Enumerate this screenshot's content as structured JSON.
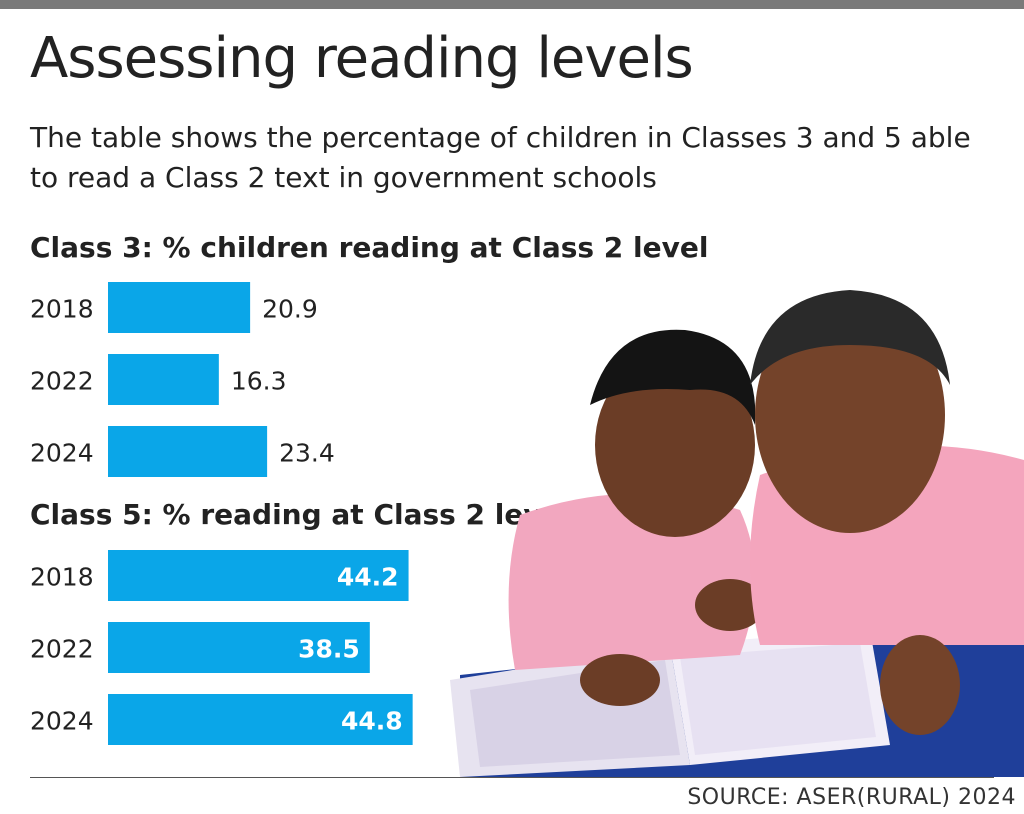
{
  "header": {
    "title": "Assessing reading levels",
    "subtitle": "The table shows the percentage of children in Classes 3 and 5 able to read a Class 2 text in government schools"
  },
  "footer": {
    "source": "SOURCE: ASER(RURAL) 2024"
  },
  "colors": {
    "bar": "#0aa6e8",
    "topbar": "#7a7a7a",
    "text": "#222222"
  },
  "photo": {
    "icon": "children-reading-photo"
  },
  "chart_data": [
    {
      "type": "bar",
      "orientation": "horizontal",
      "title": "Class 3: % children reading at Class 2 level",
      "categories": [
        "2018",
        "2022",
        "2024"
      ],
      "values": [
        20.9,
        16.3,
        23.4
      ],
      "label_position": "outside"
    },
    {
      "type": "bar",
      "orientation": "horizontal",
      "title": "Class 5: % reading at Class 2 level",
      "categories": [
        "2018",
        "2022",
        "2024"
      ],
      "values": [
        44.2,
        38.5,
        44.8
      ],
      "label_position": "inside"
    }
  ]
}
